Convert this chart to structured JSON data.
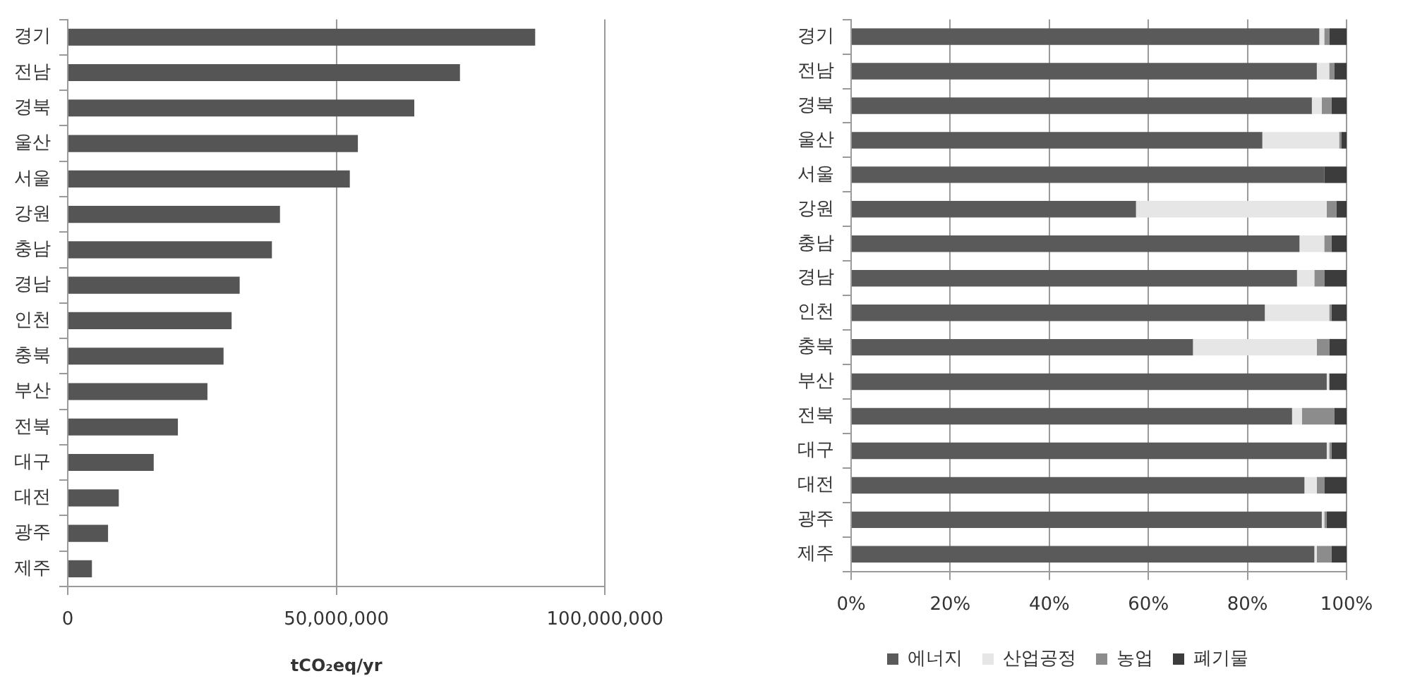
{
  "chart_data": [
    {
      "type": "bar",
      "orientation": "horizontal",
      "categories": [
        "경기",
        "전남",
        "경북",
        "울산",
        "서울",
        "강원",
        "충남",
        "경남",
        "인천",
        "충북",
        "부산",
        "전북",
        "대구",
        "대전",
        "광주",
        "제주"
      ],
      "values": [
        87000000,
        73000000,
        64500000,
        54000000,
        52500000,
        39500000,
        38000000,
        32000000,
        30500000,
        29000000,
        26000000,
        20500000,
        16000000,
        9500000,
        7500000,
        4500000
      ],
      "color": "#555555",
      "xlabel": "tCO₂eq/yr",
      "xlim": [
        0,
        100000000
      ],
      "xticks": [
        {
          "value": 0,
          "label": "0"
        },
        {
          "value": 50000000,
          "label": "50,000,000"
        },
        {
          "value": 100000000,
          "label": "100,000,000"
        }
      ],
      "grid": "x"
    },
    {
      "type": "bar",
      "orientation": "horizontal",
      "stacked": true,
      "categories": [
        "경기",
        "전남",
        "경북",
        "울산",
        "서울",
        "강원",
        "충남",
        "경남",
        "인천",
        "충북",
        "부산",
        "전북",
        "대구",
        "대전",
        "광주",
        "제주"
      ],
      "series": [
        {
          "name": "에너지",
          "color": "#5a5a5a",
          "values": [
            94.5,
            94,
            93,
            83,
            95.5,
            57.5,
            90.5,
            90,
            83.5,
            69,
            96,
            89,
            96,
            91.5,
            95,
            93.5
          ]
        },
        {
          "name": "산업공정",
          "color": "#e6e6e6",
          "values": [
            1,
            2.5,
            2,
            15.5,
            0,
            38.5,
            5,
            3.5,
            13,
            25,
            0.5,
            2,
            0.5,
            2.5,
            0.5,
            0.5
          ]
        },
        {
          "name": "농업",
          "color": "#8c8c8c",
          "values": [
            1,
            1,
            2,
            0.5,
            0,
            2,
            1.5,
            2,
            0.5,
            2.5,
            0,
            6.5,
            0.5,
            1.5,
            0.5,
            3
          ]
        },
        {
          "name": "폐기물",
          "color": "#3c3c3c",
          "values": [
            3.5,
            2.5,
            3,
            1,
            4.5,
            2,
            3,
            4.5,
            3,
            3.5,
            3.5,
            2.5,
            3,
            4.5,
            4,
            3
          ]
        }
      ],
      "xlim": [
        0,
        100
      ],
      "xticks": [
        {
          "value": 0,
          "label": "0%"
        },
        {
          "value": 20,
          "label": "20%"
        },
        {
          "value": 40,
          "label": "40%"
        },
        {
          "value": 60,
          "label": "60%"
        },
        {
          "value": 80,
          "label": "80%"
        },
        {
          "value": 100,
          "label": "100%"
        }
      ],
      "grid": "x",
      "legend": "bottom"
    }
  ]
}
